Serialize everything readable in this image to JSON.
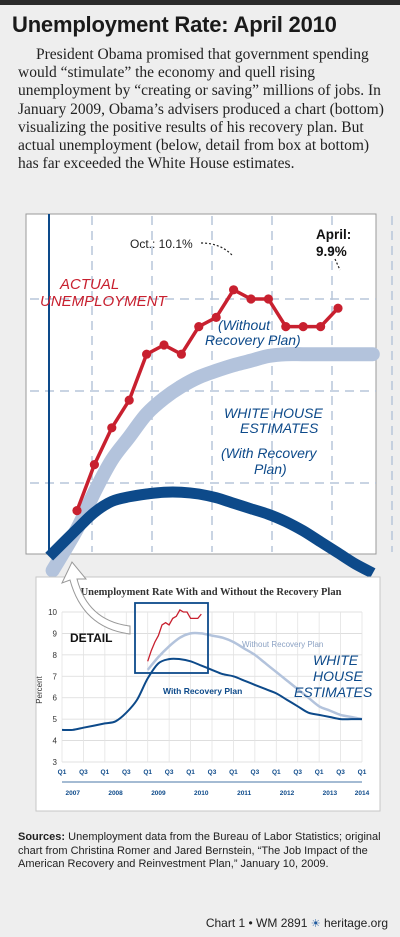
{
  "title": "Unemployment Rate: April 2010",
  "intro": "President Obama promised that government spending would “stimulate” the economy and quell rising unemployment by “creating or saving” millions of jobs. In January 2009, Obama’s advisers produced a chart (bottom) visualizing the positive results of his recovery plan. But actual unemployment (below, detail from box at bottom) has far exceeded the White House estimates.",
  "colors": {
    "actual": "#c8202f",
    "without_plan": "#b3c3dc",
    "with_plan": "#0d4a8a",
    "label_blue": "#0d4a8a",
    "grid": "#b7c6da"
  },
  "chart_data": [
    {
      "type": "line",
      "label_actual_line1": "ACTUAL",
      "label_actual_line2": "UNEMPLOYMENT",
      "annotation_oct": "Oct.: 10.1%",
      "annotation_april_label": "April:",
      "annotation_april_value": "9.9%",
      "label_without_line1": "(Without",
      "label_without_line2": "Recovery Plan)",
      "label_wh_line1": "WHITE HOUSE",
      "label_wh_line2": "ESTIMATES",
      "label_with_line1": "(With Recovery",
      "label_with_line2": "Plan)",
      "ylim": [
        7.0,
        10.3
      ],
      "series": [
        {
          "name": "ACTUAL UNEMPLOYMENT",
          "x": [
            0,
            1,
            2,
            3,
            4,
            5,
            6,
            7,
            8,
            9,
            10,
            11,
            12,
            13,
            14,
            15
          ],
          "y": [
            7.7,
            8.2,
            8.6,
            8.9,
            9.4,
            9.5,
            9.4,
            9.7,
            9.8,
            10.1,
            10.0,
            10.0,
            9.7,
            9.7,
            9.7,
            9.9
          ]
        },
        {
          "name": "Without Recovery Plan",
          "x": [
            0,
            1,
            2,
            3,
            4,
            5,
            6,
            7,
            8,
            9,
            10,
            11,
            12,
            13,
            14,
            15,
            16,
            17
          ],
          "y": [
            7.5,
            7.9,
            8.25,
            8.5,
            8.75,
            8.92,
            9.05,
            9.15,
            9.22,
            9.28,
            9.33,
            9.38,
            9.4,
            9.4,
            9.4,
            9.4,
            9.4,
            9.4
          ]
        },
        {
          "name": "With Recovery Plan",
          "x": [
            0,
            1,
            2,
            3,
            4,
            5,
            6,
            7,
            8,
            9,
            10,
            11,
            12,
            13,
            14,
            15,
            16,
            17
          ],
          "y": [
            7.5,
            7.68,
            7.8,
            7.85,
            7.88,
            7.9,
            7.9,
            7.88,
            7.84,
            7.78,
            7.72,
            7.66,
            7.58,
            7.48,
            7.36,
            7.24,
            7.12,
            7.02
          ]
        }
      ]
    },
    {
      "type": "line",
      "title": "Unemployment Rate With and Without the Recovery Plan",
      "ylabel": "Percent",
      "ylim": [
        3,
        10
      ],
      "yticks": [
        3,
        4,
        5,
        6,
        7,
        8,
        9,
        10
      ],
      "xlim": [
        0,
        28
      ],
      "xticks": [
        "Q1",
        "Q3",
        "Q1",
        "Q3",
        "Q1",
        "Q3",
        "Q1",
        "Q3",
        "Q1",
        "Q3",
        "Q1",
        "Q3",
        "Q1",
        "Q3",
        "Q1"
      ],
      "years": [
        "2007",
        "2008",
        "2009",
        "2010",
        "2011",
        "2012",
        "2013",
        "2014"
      ],
      "detail_label": "DETAIL",
      "label_without": "Without Recovery Plan",
      "label_with": "With Recovery Plan",
      "label_wh_line1": "WHITE",
      "label_wh_line2": "HOUSE",
      "label_wh_line3": "ESTIMATES",
      "series": [
        {
          "name": "Without Recovery Plan",
          "x": [
            8,
            9,
            10,
            11,
            12,
            13,
            14,
            15,
            16,
            17,
            18,
            19,
            20,
            21,
            22,
            23,
            24,
            25,
            26,
            27,
            28
          ],
          "y": [
            7.3,
            7.9,
            8.4,
            8.8,
            9.0,
            9.0,
            8.9,
            8.8,
            8.6,
            8.3,
            8.0,
            7.6,
            7.2,
            6.8,
            6.4,
            6.0,
            5.6,
            5.4,
            5.2,
            5.1,
            5.0
          ]
        },
        {
          "name": "With Recovery Plan",
          "x": [
            0,
            1,
            2,
            3,
            4,
            5,
            6,
            7,
            8,
            9,
            10,
            11,
            12,
            13,
            14,
            15,
            16,
            17,
            18,
            19,
            20,
            21,
            22,
            23,
            24,
            25,
            26,
            27,
            28
          ],
          "y": [
            4.5,
            4.5,
            4.6,
            4.7,
            4.8,
            4.9,
            5.3,
            5.9,
            6.9,
            7.6,
            7.8,
            7.8,
            7.7,
            7.5,
            7.3,
            7.1,
            7.0,
            6.8,
            6.6,
            6.4,
            6.2,
            5.9,
            5.6,
            5.3,
            5.2,
            5.1,
            5.0,
            5.0,
            5.0
          ]
        },
        {
          "name": "Actual",
          "x": [
            8,
            8.33,
            8.67,
            9,
            9.33,
            9.67,
            10,
            10.33,
            10.67,
            11,
            11.33,
            11.67,
            12,
            12.33,
            12.67,
            13
          ],
          "y": [
            7.7,
            8.2,
            8.6,
            8.9,
            9.4,
            9.5,
            9.4,
            9.7,
            9.8,
            10.1,
            10.0,
            10.0,
            9.7,
            9.7,
            9.7,
            9.9
          ]
        }
      ]
    }
  ],
  "sources_label": "Sources:",
  "sources_text": "Unemployment data from the Bureau of Labor Statistics; original chart from Christina Romer and Jared Bernstein, “The Job Impact of the American Recovery and Reinvestment Plan,” January 10, 2009.",
  "footer_chart": "Chart 1 • WM 2891",
  "footer_site": "heritage.org"
}
